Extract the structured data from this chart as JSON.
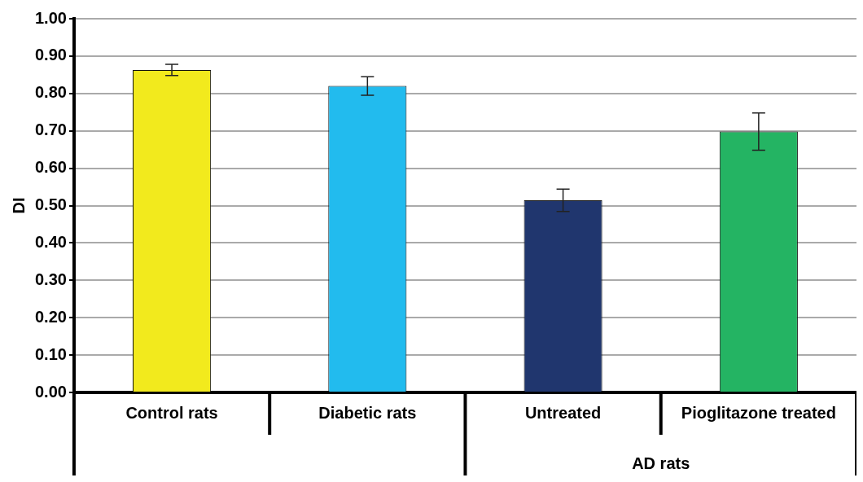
{
  "chart_data": {
    "type": "bar",
    "ylabel": "DI",
    "categories": [
      "Control rats",
      "Diabetic rats",
      "Untreated",
      "Pioglitazone treated"
    ],
    "values": [
      0.863,
      0.82,
      0.514,
      0.698
    ],
    "colors": [
      "#f2ea1d",
      "#22bbee",
      "#20366e",
      "#24b463"
    ],
    "errors": [
      0.015,
      0.025,
      0.03,
      0.05
    ],
    "ylim": [
      0,
      1
    ],
    "yticks": [
      {
        "value": 0,
        "label": "0.00"
      },
      {
        "value": 0.1,
        "label": "0.10"
      },
      {
        "value": 0.2,
        "label": "0.20"
      },
      {
        "value": 0.3,
        "label": "0.30"
      },
      {
        "value": 0.4,
        "label": "0.40"
      },
      {
        "value": 0.5,
        "label": "0.50"
      },
      {
        "value": 0.6,
        "label": "0.60"
      },
      {
        "value": 0.7,
        "label": "0.70"
      },
      {
        "value": 0.8,
        "label": "0.80"
      },
      {
        "value": 0.9,
        "label": "0.90"
      },
      {
        "value": 1,
        "label": "1.00"
      }
    ],
    "grid": "y",
    "annotations": [
      "AD rats"
    ]
  }
}
